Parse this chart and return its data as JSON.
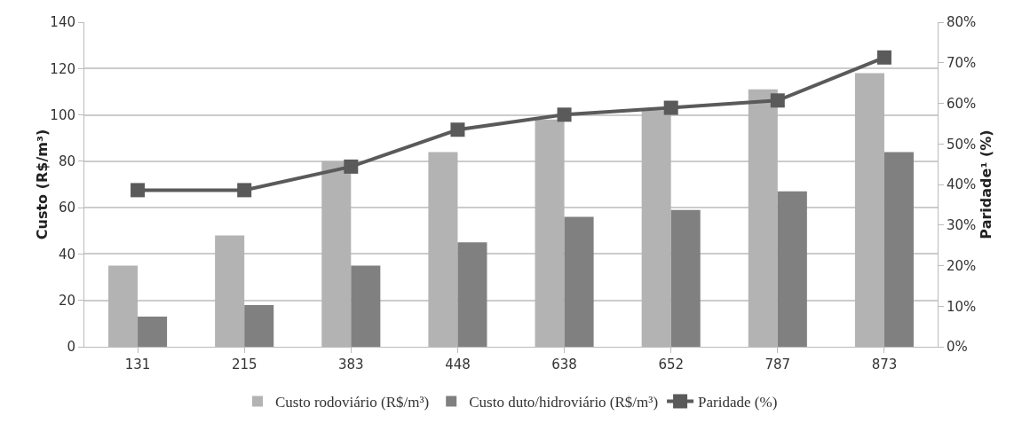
{
  "chart_data": {
    "type": "bar",
    "ylabel": "Custo (R$/m³)",
    "y2label": "Paridade¹ (%)",
    "categories": [
      "131",
      "215",
      "383",
      "448",
      "638",
      "652",
      "787",
      "873"
    ],
    "series": [
      {
        "name": "Custo rodoviário (R$/m³)",
        "color": "#b3b3b3",
        "values": [
          35,
          48,
          80,
          84,
          98,
          102,
          111,
          118
        ]
      },
      {
        "name": "Custo duto/hidroviário (R$/m³)",
        "color": "#808080",
        "values": [
          13,
          18,
          35,
          45,
          56,
          59,
          67,
          84
        ]
      },
      {
        "name": "Paridade (%)",
        "type": "line",
        "axis": "y2",
        "color": "#5a5a5a",
        "marker": "square",
        "values": [
          38.6,
          38.6,
          44.4,
          53.5,
          57.2,
          58.9,
          60.7,
          71.3
        ]
      }
    ],
    "ylim": [
      0,
      140
    ],
    "yticks": [
      0,
      20,
      40,
      60,
      80,
      100,
      120,
      140
    ],
    "y2lim": [
      0,
      80
    ],
    "y2ticks": [
      {
        "value": 0,
        "label": "0%"
      },
      {
        "value": 10,
        "label": "10%"
      },
      {
        "value": 20,
        "label": "20%"
      },
      {
        "value": 30,
        "label": "30%"
      },
      {
        "value": 40,
        "label": "40%"
      },
      {
        "value": 50,
        "label": "50%"
      },
      {
        "value": 60,
        "label": "60%"
      },
      {
        "value": 70,
        "label": "70%"
      },
      {
        "value": 80,
        "label": "80%"
      }
    ],
    "grid": "y",
    "legend": "bottom"
  }
}
